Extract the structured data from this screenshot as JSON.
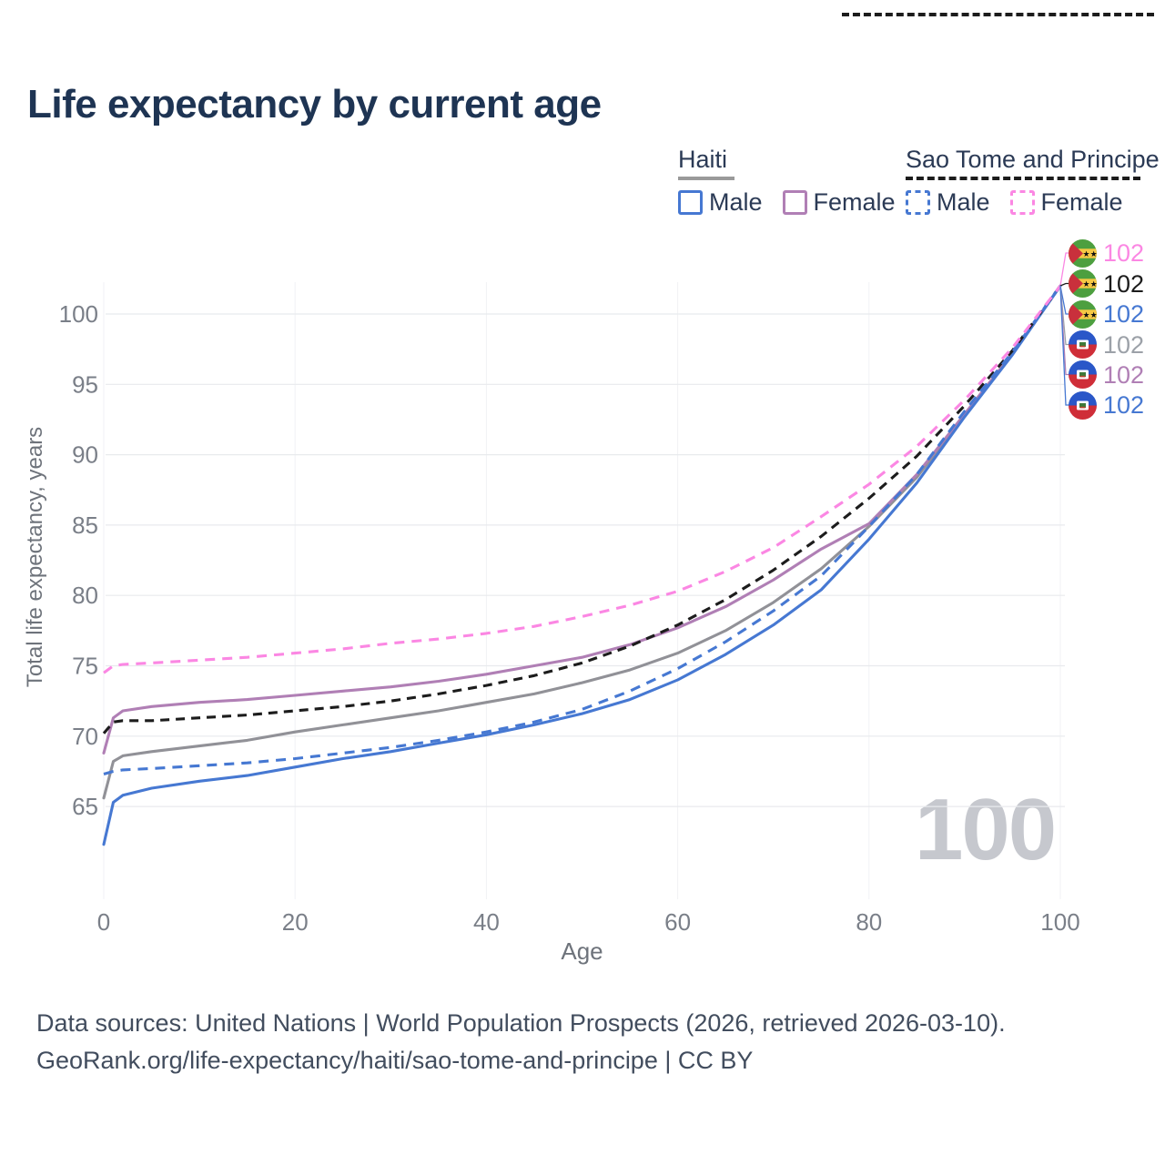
{
  "title": "Life expectancy by current age",
  "legend": {
    "groups": [
      {
        "label": "Haiti",
        "line_style": "solid",
        "line_color": "#9a9a9a",
        "items": [
          {
            "label": "Male",
            "color": "#4678d2",
            "style": "solid"
          },
          {
            "label": "Female",
            "color": "#b07fb5",
            "style": "solid"
          }
        ]
      },
      {
        "label": "Sao Tome and Principe",
        "line_style": "dashed",
        "line_color": "#1c1c1c",
        "items": [
          {
            "label": "Male",
            "color": "#4678d2",
            "style": "dashed"
          },
          {
            "label": "Female",
            "color": "#fb87e3",
            "style": "dashed"
          }
        ]
      }
    ]
  },
  "chart_data": {
    "type": "line",
    "title": "Life expectancy by current age",
    "xlabel": "Age",
    "ylabel": "Total life expectancy, years",
    "xlim": [
      0,
      100
    ],
    "ylim": [
      62,
      103
    ],
    "x_ticks": [
      0,
      20,
      40,
      60,
      80,
      100
    ],
    "y_ticks": [
      65,
      70,
      75,
      80,
      85,
      90,
      95,
      100
    ],
    "grid": "both",
    "legend_position": "top-right",
    "x": [
      0,
      1,
      2,
      5,
      10,
      15,
      20,
      25,
      30,
      35,
      40,
      45,
      50,
      55,
      60,
      65,
      70,
      75,
      80,
      85,
      90,
      95,
      100
    ],
    "series": [
      {
        "name": "Haiti",
        "sex": "Total",
        "color": "#919197",
        "dash": false,
        "dash_pattern": "",
        "end_label": "102",
        "values": [
          65.6,
          68.2,
          68.6,
          68.9,
          69.3,
          69.7,
          70.3,
          70.8,
          71.3,
          71.8,
          72.4,
          73.0,
          73.8,
          74.7,
          75.9,
          77.5,
          79.5,
          81.9,
          84.9,
          88.4,
          92.8,
          97.2,
          102
        ]
      },
      {
        "name": "Haiti Female",
        "sex": "Female",
        "color": "#b07fb5",
        "dash": false,
        "dash_pattern": "",
        "end_label": "102",
        "values": [
          68.8,
          71.3,
          71.8,
          72.1,
          72.4,
          72.6,
          72.9,
          73.2,
          73.5,
          73.9,
          74.4,
          75.0,
          75.6,
          76.5,
          77.7,
          79.2,
          81.1,
          83.3,
          85.1,
          88.6,
          92.9,
          97.2,
          102
        ]
      },
      {
        "name": "Haiti Male",
        "sex": "Male",
        "color": "#4678d2",
        "dash": false,
        "dash_pattern": "",
        "end_label": "102",
        "values": [
          62.3,
          65.3,
          65.8,
          66.3,
          66.8,
          67.2,
          67.8,
          68.4,
          68.9,
          69.5,
          70.1,
          70.8,
          71.6,
          72.6,
          74.0,
          75.8,
          77.9,
          80.4,
          84.0,
          88.0,
          92.7,
          97.1,
          102
        ]
      },
      {
        "name": "Sao Tome and Principe",
        "sex": "Total",
        "color": "#1c1c1c",
        "dash": true,
        "dash_pattern": "10 7",
        "end_label": "102",
        "values": [
          70.2,
          71.0,
          71.1,
          71.1,
          71.3,
          71.5,
          71.8,
          72.1,
          72.5,
          73.0,
          73.6,
          74.3,
          75.2,
          76.4,
          77.9,
          79.7,
          81.8,
          84.2,
          86.9,
          89.9,
          93.5,
          97.4,
          102
        ]
      },
      {
        "name": "Sao Tome and Principe Male",
        "sex": "Male",
        "color": "#4678d2",
        "dash": true,
        "dash_pattern": "11 8",
        "end_label": "102",
        "values": [
          67.3,
          67.5,
          67.6,
          67.7,
          67.9,
          68.1,
          68.4,
          68.8,
          69.2,
          69.7,
          70.3,
          71.0,
          71.9,
          73.2,
          74.8,
          76.7,
          78.9,
          81.4,
          84.9,
          88.6,
          93.1,
          97.3,
          102
        ]
      },
      {
        "name": "Sao Tome and Principe Female",
        "sex": "Female",
        "color": "#fb87e3",
        "dash": true,
        "dash_pattern": "11 8",
        "end_label": "102",
        "values": [
          74.5,
          75.0,
          75.1,
          75.2,
          75.4,
          75.6,
          75.9,
          76.2,
          76.6,
          76.9,
          77.3,
          77.8,
          78.5,
          79.3,
          80.3,
          81.7,
          83.4,
          85.6,
          87.9,
          90.6,
          93.9,
          97.6,
          102
        ]
      }
    ]
  },
  "end_labels": [
    {
      "flag": "sao-tome-and-principe",
      "value": "102",
      "color": "#fb87e3"
    },
    {
      "flag": "sao-tome-and-principe",
      "value": "102",
      "color": "#1c1c1c"
    },
    {
      "flag": "sao-tome-and-principe",
      "value": "102",
      "color": "#4678d2"
    },
    {
      "flag": "haiti",
      "value": "102",
      "color": "#9ca1a8"
    },
    {
      "flag": "haiti",
      "value": "102",
      "color": "#b07fb5"
    },
    {
      "flag": "haiti",
      "value": "102",
      "color": "#4678d2"
    }
  ],
  "watermark": "100",
  "footer": {
    "line1": "Data sources: United Nations | World Population Prospects (2026, retrieved 2026-03-10).",
    "line2": "GeoRank.org/life-expectancy/haiti/sao-tome-and-principe | CC BY"
  }
}
